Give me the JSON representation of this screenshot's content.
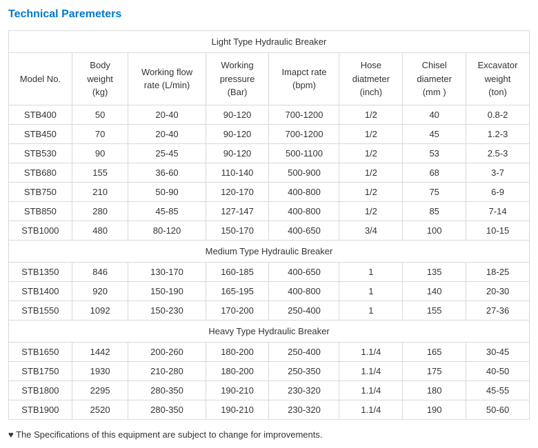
{
  "title": "Technical Paremeters",
  "colors": {
    "title": "#0078c8",
    "border": "#d9d9d9",
    "text": "#333333",
    "background": "#ffffff"
  },
  "typography": {
    "title_fontsize": 16,
    "cell_fontsize": 13,
    "font_family": "Arial"
  },
  "columns": [
    {
      "key": "model",
      "label_l1": "Model No.",
      "label_l2": "",
      "label_l3": ""
    },
    {
      "key": "body",
      "label_l1": "Body",
      "label_l2": "weight",
      "label_l3": "(kg)"
    },
    {
      "key": "flow",
      "label_l1": "Working flow",
      "label_l2": "rate (L/min)",
      "label_l3": ""
    },
    {
      "key": "press",
      "label_l1": "Working",
      "label_l2": "pressure",
      "label_l3": "(Bar)"
    },
    {
      "key": "bpm",
      "label_l1": "Imapct rate",
      "label_l2": "(bpm)",
      "label_l3": ""
    },
    {
      "key": "hose",
      "label_l1": "Hose",
      "label_l2": "diatmeter",
      "label_l3": "(inch)"
    },
    {
      "key": "chisel",
      "label_l1": "Chisel",
      "label_l2": "diameter",
      "label_l3": "(mm )"
    },
    {
      "key": "exc",
      "label_l1": "Excavator",
      "label_l2": "weight",
      "label_l3": "(ton)"
    }
  ],
  "sections": [
    {
      "title": "Light Type Hydraulic Breaker",
      "rows": [
        [
          "STB400",
          "50",
          "20-40",
          "90-120",
          "700-1200",
          "1/2",
          "40",
          "0.8-2"
        ],
        [
          "STB450",
          "70",
          "20-40",
          "90-120",
          "700-1200",
          "1/2",
          "45",
          "1.2-3"
        ],
        [
          "STB530",
          "90",
          "25-45",
          "90-120",
          "500-1100",
          "1/2",
          "53",
          "2.5-3"
        ],
        [
          "STB680",
          "155",
          "36-60",
          "110-140",
          "500-900",
          "1/2",
          "68",
          "3-7"
        ],
        [
          "STB750",
          "210",
          "50-90",
          "120-170",
          "400-800",
          "1/2",
          "75",
          "6-9"
        ],
        [
          "STB850",
          "280",
          "45-85",
          "127-147",
          "400-800",
          "1/2",
          "85",
          "7-14"
        ],
        [
          "STB1000",
          "480",
          "80-120",
          "150-170",
          "400-650",
          "3/4",
          "100",
          "10-15"
        ]
      ]
    },
    {
      "title": "Medium Type Hydraulic Breaker",
      "rows": [
        [
          "STB1350",
          "846",
          "130-170",
          "160-185",
          "400-650",
          "1",
          "135",
          "18-25"
        ],
        [
          "STB1400",
          "920",
          "150-190",
          "165-195",
          "400-800",
          "1",
          "140",
          "20-30"
        ],
        [
          "STB1550",
          "1092",
          "150-230",
          "170-200",
          "250-400",
          "1",
          "155",
          "27-36"
        ]
      ]
    },
    {
      "title": "Heavy Type Hydraulic Breaker",
      "rows": [
        [
          "STB1650",
          "1442",
          "200-260",
          "180-200",
          "250-400",
          "1.1/4",
          "165",
          "30-45"
        ],
        [
          "STB1750",
          "1930",
          "210-280",
          "180-200",
          "250-350",
          "1.1/4",
          "175",
          "40-50"
        ],
        [
          "STB1800",
          "2295",
          "280-350",
          "190-210",
          "230-320",
          "1.1/4",
          "180",
          "45-55"
        ],
        [
          "STB1900",
          "2520",
          "280-350",
          "190-210",
          "230-320",
          "1.1/4",
          "190",
          "50-60"
        ]
      ]
    }
  ],
  "footnote": "♥ The Specifications of this equipment are subject to change for improvements."
}
